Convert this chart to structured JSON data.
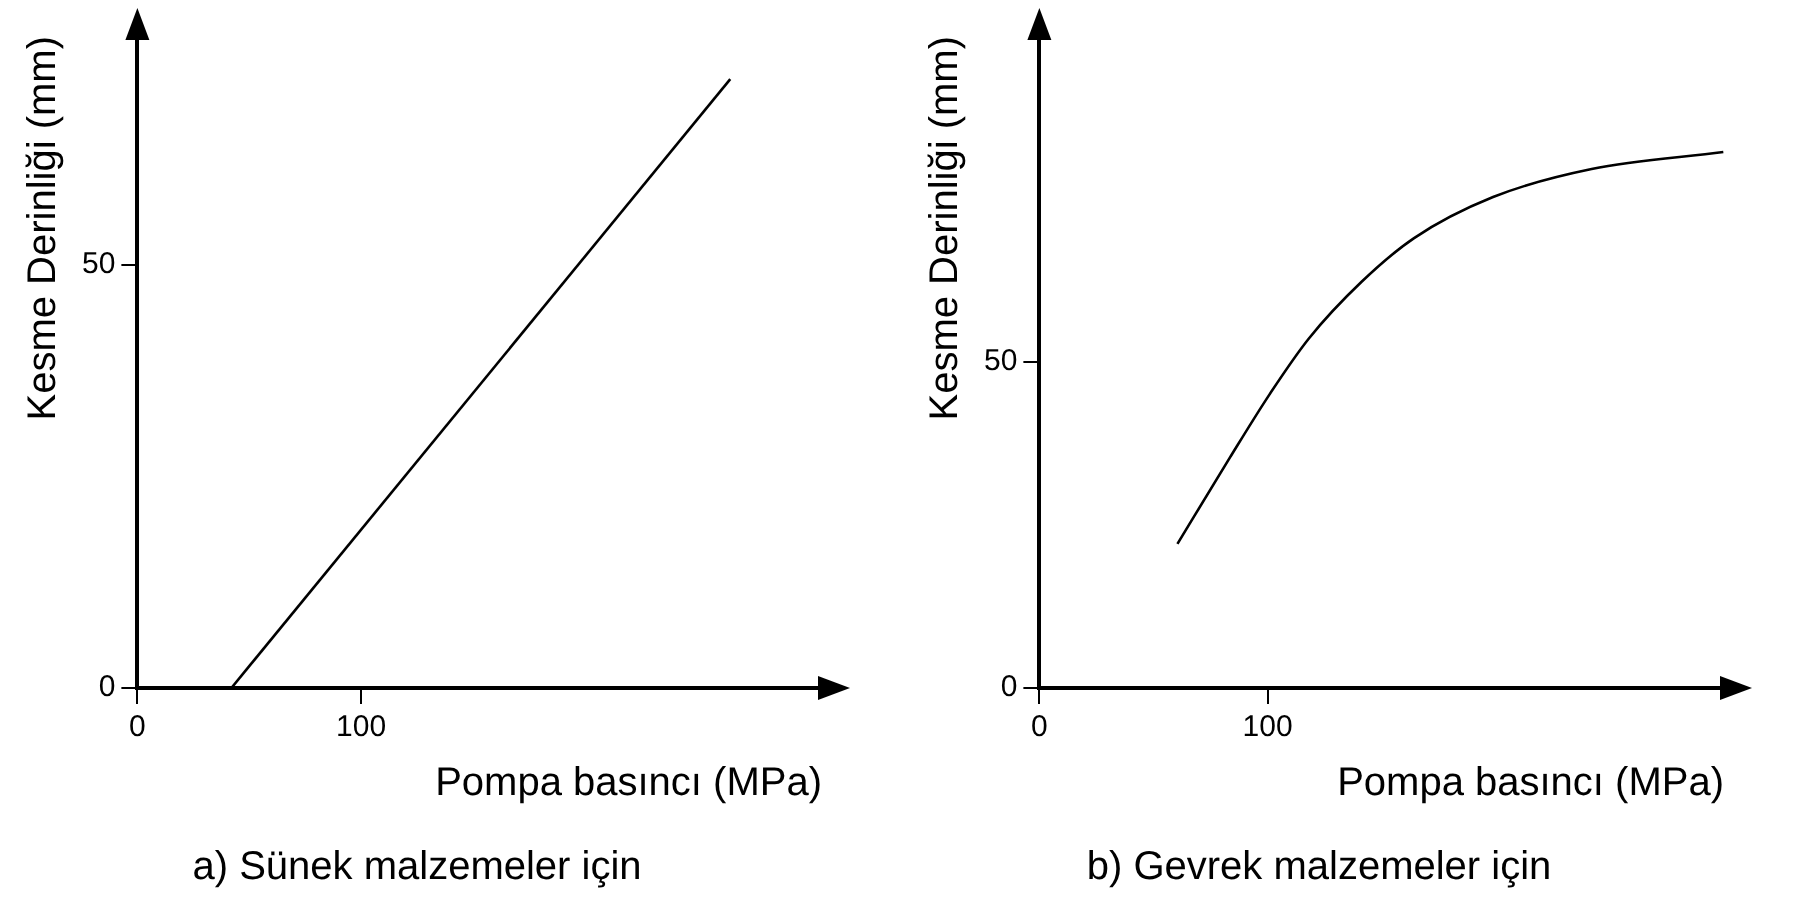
{
  "chart_data": [
    {
      "type": "line",
      "title": "a) Sünek malzemeler için",
      "xlabel": "Pompa basıncı (MPa)",
      "ylabel": "Kesme Derinliği (mm)",
      "xlim": [
        0,
        306
      ],
      "ylim": [
        0,
        77
      ],
      "xticks": [
        {
          "value": 0,
          "label": "0"
        },
        100
      ],
      "yticks": [
        {
          "value": 0,
          "label": "0"
        },
        50
      ],
      "grid": false,
      "legend": false,
      "marker": "none",
      "series": [
        {
          "color": "#000000",
          "x": [
            42,
            265
          ],
          "values": [
            0,
            71.9
          ]
        }
      ]
    },
    {
      "type": "line",
      "title": "b) Gevrek malzemeler için",
      "xlabel": "Pompa basıncı (MPa)",
      "ylabel": "Kesme Derinliği (mm)",
      "xlim": [
        0,
        300
      ],
      "ylim": [
        0,
        100
      ],
      "xticks": [
        {
          "value": 0,
          "label": "0"
        },
        100
      ],
      "yticks": [
        {
          "value": 0,
          "label": "0"
        },
        50
      ],
      "grid": false,
      "legend": false,
      "marker": "none",
      "series": [
        {
          "color": "#000000",
          "x": [
            60.5,
            83.6,
            100.8,
            118.1,
            141.2,
            164.2,
            198.8,
            242,
            299.7
          ],
          "values": [
            22.1,
            35.4,
            45.0,
            53.6,
            62.3,
            69.0,
            75.3,
            79.6,
            82.2
          ]
        }
      ]
    }
  ]
}
